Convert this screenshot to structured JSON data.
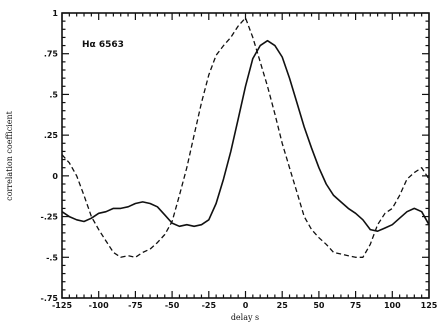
{
  "chart_data": {
    "type": "line",
    "xlabel": "delay s",
    "ylabel": "correlation coefficient",
    "annotation": "Hα 6563",
    "xlim": [
      -125,
      125
    ],
    "ylim": [
      -0.75,
      1
    ],
    "xticks": [
      -125,
      -100,
      -75,
      -50,
      -25,
      0,
      25,
      50,
      75,
      100,
      125
    ],
    "yticks": [
      -0.75,
      -0.5,
      -0.25,
      0,
      0.25,
      0.5,
      0.75,
      1
    ],
    "xtick_labels": [
      "-125",
      "-100",
      "-75",
      "-50",
      "-25",
      "0",
      "25",
      "50",
      "75",
      "100",
      "125"
    ],
    "ytick_labels": [
      "-.75",
      "-.5",
      "-.25",
      "0",
      ".25",
      ".5",
      ".75",
      "1"
    ],
    "grid": false,
    "series": [
      {
        "style": "solid",
        "x": [
          -125,
          -120,
          -115,
          -110,
          -105,
          -100,
          -95,
          -90,
          -85,
          -80,
          -75,
          -70,
          -65,
          -60,
          -55,
          -50,
          -45,
          -40,
          -35,
          -30,
          -25,
          -20,
          -15,
          -10,
          -5,
          0,
          5,
          10,
          15,
          20,
          25,
          30,
          35,
          40,
          45,
          50,
          55,
          60,
          65,
          70,
          75,
          80,
          85,
          90,
          95,
          100,
          105,
          110,
          115,
          120,
          125
        ],
        "y": [
          -0.22,
          -0.25,
          -0.27,
          -0.28,
          -0.26,
          -0.23,
          -0.22,
          -0.2,
          -0.2,
          -0.19,
          -0.17,
          -0.16,
          -0.17,
          -0.19,
          -0.24,
          -0.29,
          -0.31,
          -0.3,
          -0.31,
          -0.3,
          -0.27,
          -0.17,
          -0.02,
          0.15,
          0.35,
          0.55,
          0.72,
          0.8,
          0.83,
          0.8,
          0.73,
          0.6,
          0.45,
          0.3,
          0.17,
          0.05,
          -0.05,
          -0.12,
          -0.16,
          -0.2,
          -0.23,
          -0.27,
          -0.33,
          -0.34,
          -0.32,
          -0.3,
          -0.26,
          -0.22,
          -0.2,
          -0.22,
          -0.3
        ]
      },
      {
        "style": "dashed",
        "x": [
          -125,
          -120,
          -115,
          -110,
          -105,
          -100,
          -95,
          -90,
          -85,
          -80,
          -75,
          -70,
          -65,
          -60,
          -55,
          -50,
          -45,
          -40,
          -35,
          -30,
          -25,
          -20,
          -15,
          -10,
          -5,
          0,
          5,
          10,
          15,
          20,
          25,
          30,
          35,
          40,
          45,
          50,
          55,
          60,
          65,
          70,
          75,
          80,
          85,
          90,
          95,
          100,
          105,
          110,
          115,
          120,
          125
        ],
        "y": [
          0.13,
          0.08,
          0.0,
          -0.12,
          -0.25,
          -0.33,
          -0.4,
          -0.47,
          -0.5,
          -0.49,
          -0.5,
          -0.47,
          -0.45,
          -0.41,
          -0.36,
          -0.28,
          -0.12,
          0.05,
          0.25,
          0.45,
          0.62,
          0.74,
          0.8,
          0.85,
          0.92,
          0.97,
          0.85,
          0.7,
          0.55,
          0.38,
          0.2,
          0.05,
          -0.1,
          -0.25,
          -0.33,
          -0.38,
          -0.42,
          -0.47,
          -0.48,
          -0.49,
          -0.5,
          -0.5,
          -0.42,
          -0.3,
          -0.23,
          -0.2,
          -0.12,
          -0.02,
          0.02,
          0.05,
          -0.02
        ]
      }
    ]
  }
}
